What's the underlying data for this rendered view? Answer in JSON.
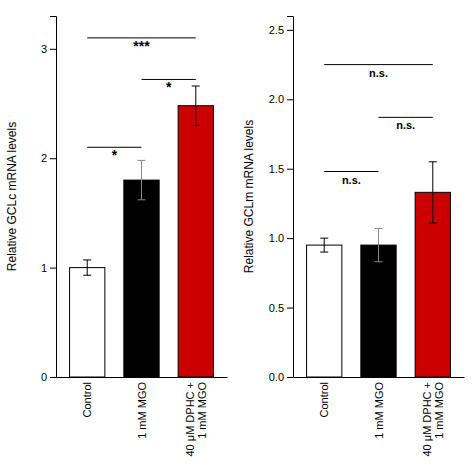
{
  "chart_data": [
    {
      "type": "bar",
      "ylabel": "Relative GCLc mRNA levels",
      "categories": [
        "Control",
        "1 mM MGO",
        "40 μM DPHC +\n1 mM MGO"
      ],
      "values": [
        1.0,
        1.8,
        2.48
      ],
      "errors": [
        0.07,
        0.18,
        0.18
      ],
      "colors": [
        "white",
        "black",
        "#cc0000"
      ],
      "ylim": [
        0,
        3.3
      ],
      "yticks": [
        0,
        1,
        2,
        3
      ],
      "annotations": [
        {
          "x1": 0,
          "x2": 1,
          "y": 2.1,
          "label": "*"
        },
        {
          "x1": 0,
          "x2": 2,
          "y": 3.1,
          "label": "***"
        },
        {
          "x1": 1,
          "x2": 2,
          "y": 2.72,
          "label": "*"
        }
      ]
    },
    {
      "type": "bar",
      "ylabel": "Relative GCLm mRNA levels",
      "categories": [
        "Control",
        "1 mM MGO",
        "40 μM DPHC +\n1 mM MGO"
      ],
      "values": [
        0.95,
        0.95,
        1.33
      ],
      "errors": [
        0.05,
        0.12,
        0.22
      ],
      "colors": [
        "white",
        "black",
        "#cc0000"
      ],
      "ylim": [
        0,
        2.6
      ],
      "yticks": [
        {
          "value": 0.0,
          "label": "0.0"
        },
        {
          "value": 0.5,
          "label": "0.5"
        },
        {
          "value": 1.0,
          "label": "1.0"
        },
        {
          "value": 1.5,
          "label": "1.5"
        },
        {
          "value": 2.0,
          "label": "2.0"
        },
        {
          "value": 2.5,
          "label": "2.5"
        }
      ],
      "annotations": [
        {
          "x1": 0,
          "x2": 1,
          "y": 1.48,
          "label": "n.s."
        },
        {
          "x1": 0,
          "x2": 2,
          "y": 2.25,
          "label": "n.s."
        },
        {
          "x1": 1,
          "x2": 2,
          "y": 1.87,
          "label": "n.s."
        }
      ]
    }
  ]
}
